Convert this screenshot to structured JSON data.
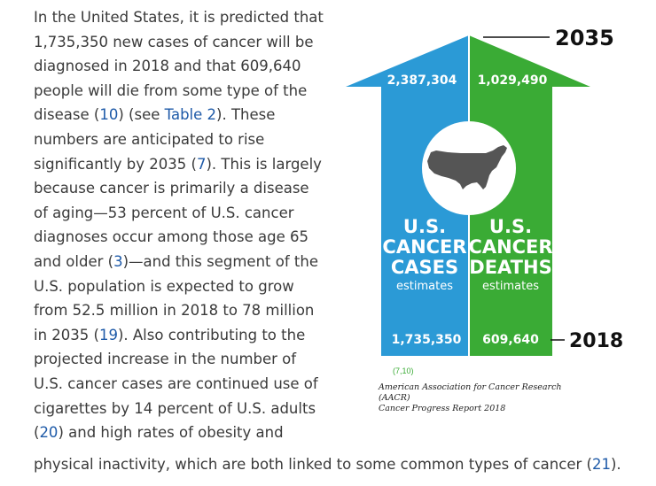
{
  "paragraph": {
    "lines": [
      [
        {
          "t": "In the United States, it is predicted that"
        }
      ],
      [
        {
          "t": "1,735,350 new cases of cancer will be"
        }
      ],
      [
        {
          "t": "diagnosed in 2018 and that 609,640"
        }
      ],
      [
        {
          "t": "people will die from some type of the"
        }
      ],
      [
        {
          "t": "disease ("
        },
        {
          "t": "10",
          "ref": true
        },
        {
          "t": ") (see "
        },
        {
          "t": "Table 2",
          "ref": true
        },
        {
          "t": "). These"
        }
      ],
      [
        {
          "t": "numbers are anticipated to rise"
        }
      ],
      [
        {
          "t": "significantly by 2035 ("
        },
        {
          "t": "7",
          "ref": true
        },
        {
          "t": "). This is largely"
        }
      ],
      [
        {
          "t": "because cancer is primarily a disease"
        }
      ],
      [
        {
          "t": "of aging—53 percent of U.S. cancer"
        }
      ],
      [
        {
          "t": "diagnoses occur among those age 65"
        }
      ],
      [
        {
          "t": "and older ("
        },
        {
          "t": "3",
          "ref": true
        },
        {
          "t": ")—and this segment of the"
        }
      ],
      [
        {
          "t": "U.S. population is expected to grow"
        }
      ],
      [
        {
          "t": "from 52.5 million in 2018 to 78 million"
        }
      ],
      [
        {
          "t": "in 2035 ("
        },
        {
          "t": "19",
          "ref": true
        },
        {
          "t": "). Also contributing to the"
        }
      ],
      [
        {
          "t": "projected increase in the number of"
        }
      ],
      [
        {
          "t": "U.S. cancer cases are continued use of"
        }
      ],
      [
        {
          "t": "cigarettes by 14 percent of U.S. adults"
        }
      ],
      [
        {
          "t": "("
        },
        {
          "t": "20",
          "ref": true
        },
        {
          "t": ") and high rates of obesity and"
        }
      ]
    ],
    "last_line": [
      {
        "t": "physical inactivity, which are both linked to some common types of cancer ("
      },
      {
        "t": "21",
        "ref": true
      },
      {
        "t": ")."
      }
    ]
  },
  "figure": {
    "year_2035": "2035",
    "year_2018": "2018",
    "cases_2035": "2,387,304",
    "deaths_2035": "1,029,490",
    "cases_2018": "1,735,350",
    "deaths_2018": "609,640",
    "cases_label": [
      "U.S.",
      "CANCER",
      "CASES"
    ],
    "deaths_label": [
      "U.S.",
      "CANCER",
      "DEATHS"
    ],
    "estimates": "estimates",
    "citation": "(7,10)",
    "credit_line1": "American Association for Cancer Research (AACR)",
    "credit_line2": "Cancer Progress Report 2018",
    "colors": {
      "cases": "#2b9ad6",
      "deaths": "#3aab35",
      "map": "#555555"
    }
  }
}
